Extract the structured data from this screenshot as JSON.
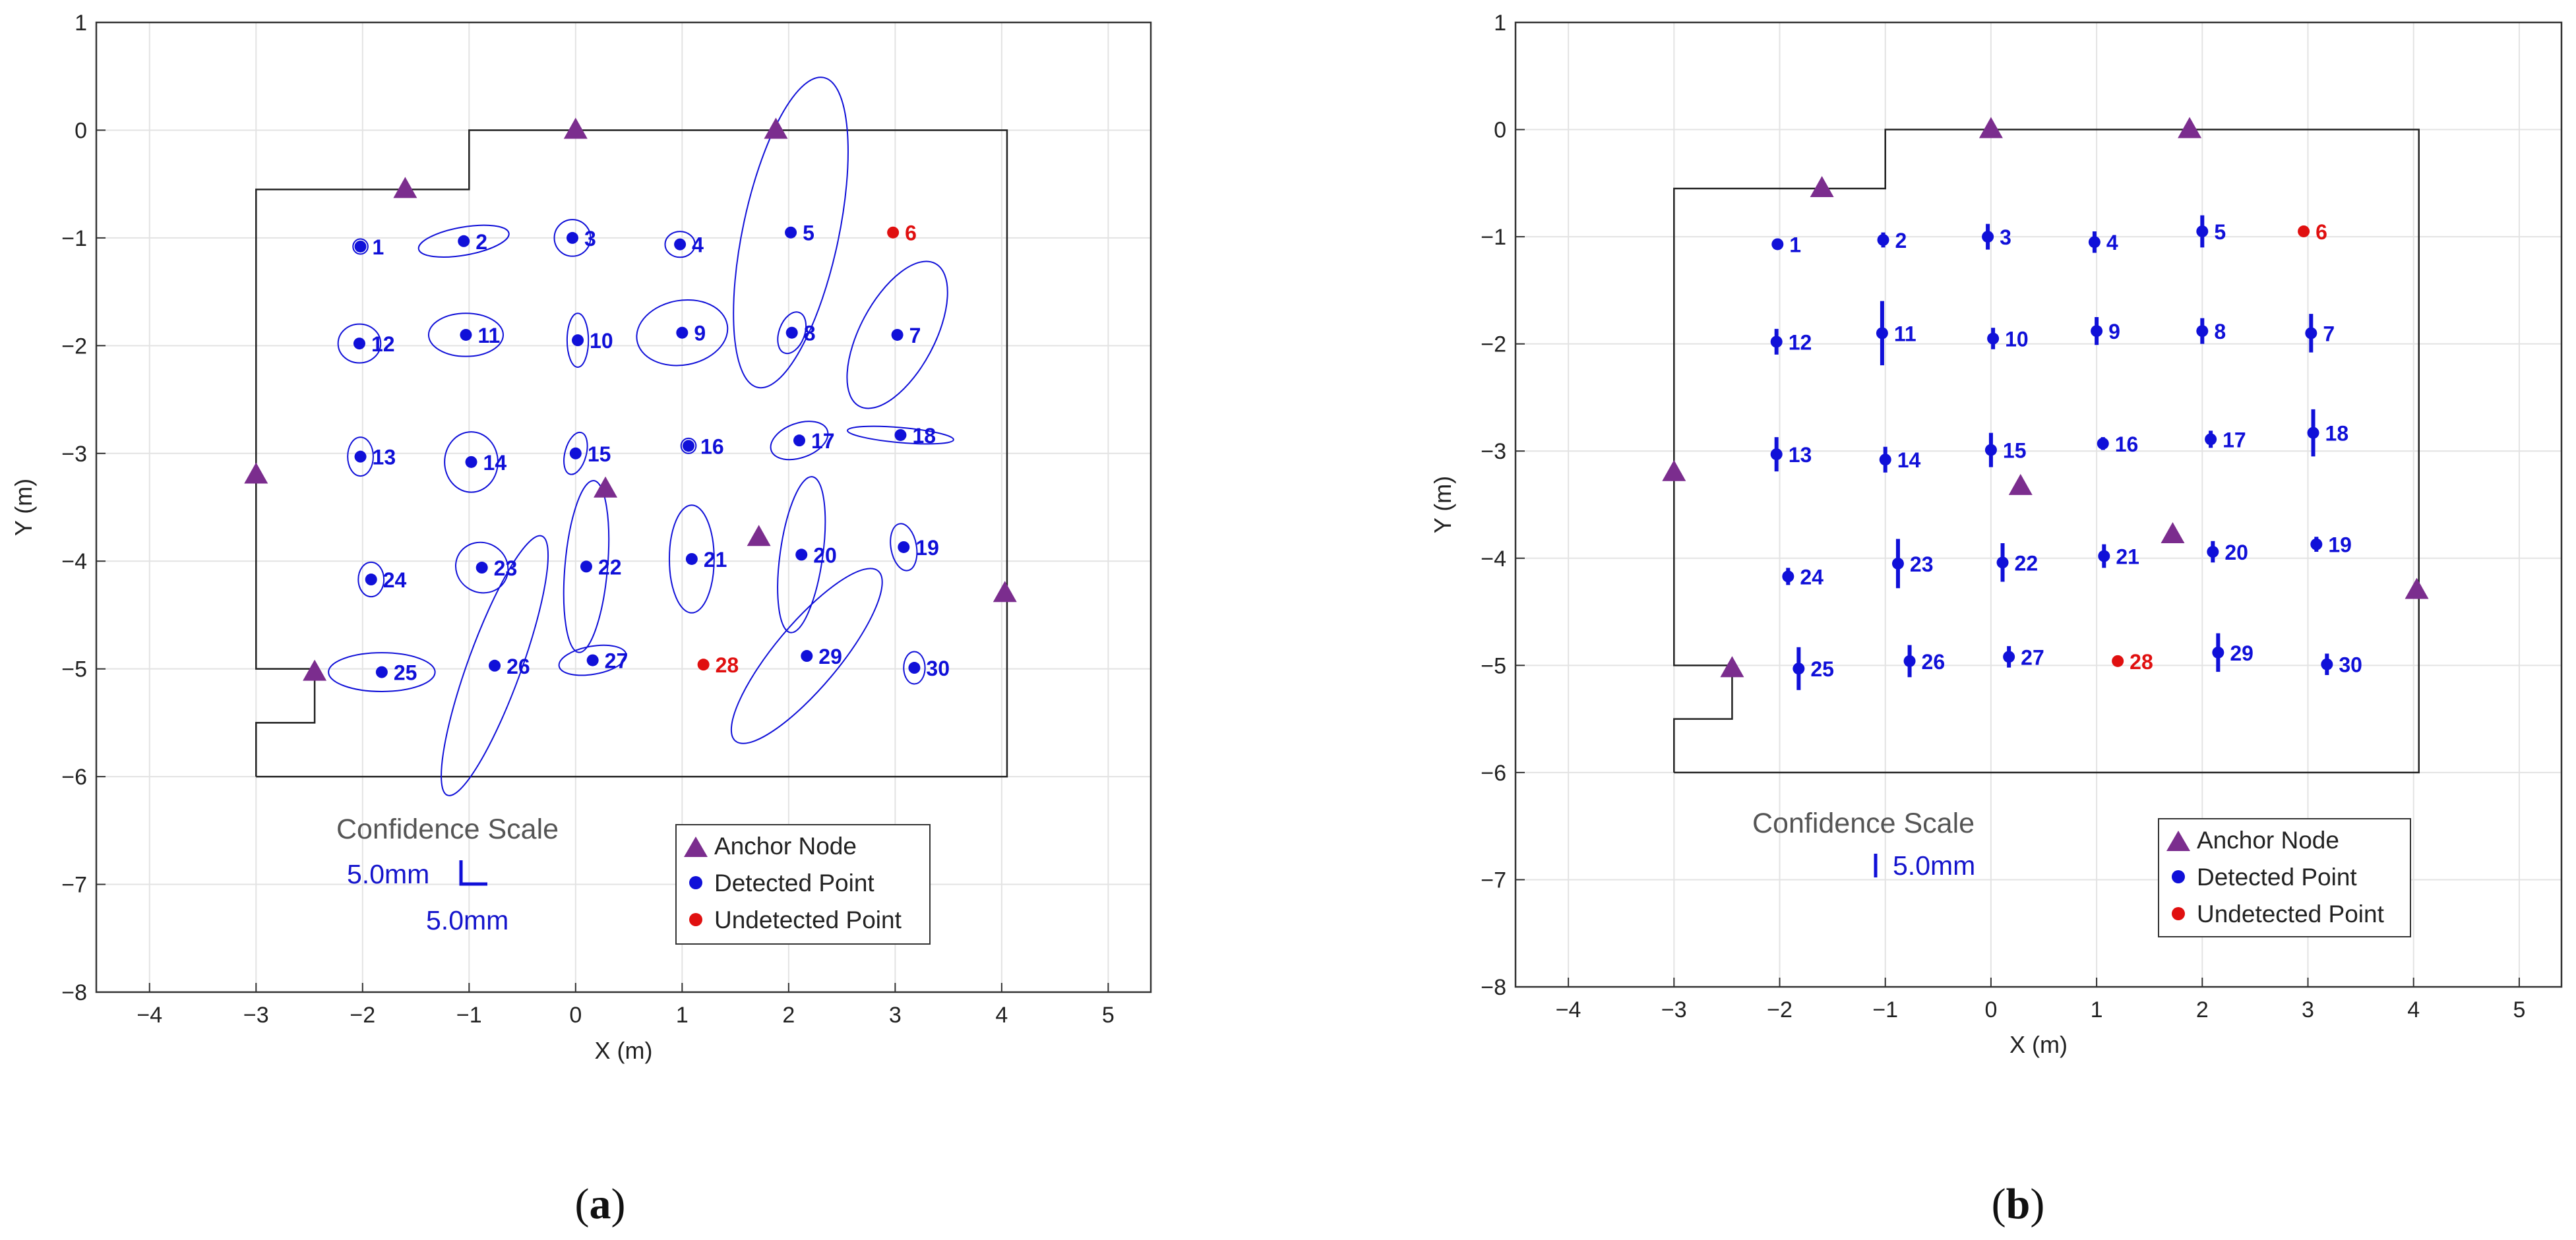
{
  "colors": {
    "anchor": "#7b2d8e",
    "detected": "#1010d8",
    "undetected": "#e01010",
    "room": "#222222",
    "grid": "#e3e3e3"
  },
  "panels": [
    {
      "label": "a",
      "mode": "ellipse",
      "scale_title": "Confidence Scale",
      "scale_text_1": "5.0mm",
      "scale_text_2": "5.0mm",
      "legend": [
        "Anchor Node",
        "Detected Point",
        "Undetected Point"
      ]
    },
    {
      "label": "b",
      "mode": "bar",
      "scale_title": "Confidence Scale",
      "scale_text_1": "5.0mm",
      "legend": [
        "Anchor Node",
        "Detected Point",
        "Undetected Point"
      ]
    }
  ],
  "chart_data": [
    {
      "type": "scatter",
      "panel": "a",
      "title": "",
      "xlabel": "X (m)",
      "ylabel": "Y (m)",
      "xlim": [
        -4.5,
        5.4
      ],
      "ylim": [
        -8,
        1
      ],
      "xticks": [
        -4,
        -3,
        -2,
        -1,
        0,
        1,
        2,
        3,
        4,
        5
      ],
      "yticks": [
        1,
        0,
        -1,
        -2,
        -3,
        -4,
        -5,
        -6,
        -7,
        -8
      ],
      "grid": true,
      "legend_position": "bottom-right",
      "room_outline": [
        [
          -3,
          -6
        ],
        [
          -3,
          -5.5
        ],
        [
          -2.45,
          -5.5
        ],
        [
          -2.45,
          -5
        ],
        [
          -3,
          -5
        ],
        [
          -3,
          -0.55
        ],
        [
          -1,
          -0.55
        ],
        [
          -1,
          0
        ],
        [
          4.05,
          0
        ],
        [
          4.05,
          -6
        ],
        [
          -3,
          -6
        ]
      ],
      "anchors": [
        [
          -1.6,
          -0.55
        ],
        [
          0,
          0
        ],
        [
          1.88,
          0
        ],
        [
          -3,
          -3.2
        ],
        [
          0.28,
          -3.33
        ],
        [
          1.72,
          -3.78
        ],
        [
          4.03,
          -4.3
        ],
        [
          -2.45,
          -5.03
        ]
      ],
      "points": [
        {
          "id": "1",
          "x": -2.02,
          "y": -1.08,
          "detected": true,
          "ellipse": {
            "rx": 0.07,
            "ry": 0.07,
            "angle": 0
          }
        },
        {
          "id": "2",
          "x": -1.05,
          "y": -1.03,
          "detected": true,
          "ellipse": {
            "rx": 0.43,
            "ry": 0.13,
            "angle": -10
          }
        },
        {
          "id": "3",
          "x": -0.03,
          "y": -1.0,
          "detected": true,
          "ellipse": {
            "rx": 0.17,
            "ry": 0.17,
            "angle": 0
          }
        },
        {
          "id": "4",
          "x": 0.98,
          "y": -1.06,
          "detected": true,
          "ellipse": {
            "rx": 0.14,
            "ry": 0.12,
            "angle": 0
          }
        },
        {
          "id": "5",
          "x": 2.02,
          "y": -0.95,
          "detected": true,
          "ellipse": {
            "rx": 0.45,
            "ry": 1.47,
            "angle": 12
          }
        },
        {
          "id": "6",
          "x": 2.98,
          "y": -0.95,
          "detected": false
        },
        {
          "id": "7",
          "x": 3.02,
          "y": -1.9,
          "detected": true,
          "ellipse": {
            "rx": 0.35,
            "ry": 0.75,
            "angle": 28
          }
        },
        {
          "id": "8",
          "x": 2.03,
          "y": -1.88,
          "detected": true,
          "ellipse": {
            "rx": 0.12,
            "ry": 0.2,
            "angle": 20
          }
        },
        {
          "id": "9",
          "x": 1.0,
          "y": -1.88,
          "detected": true,
          "ellipse": {
            "rx": 0.43,
            "ry": 0.3,
            "angle": -10
          }
        },
        {
          "id": "10",
          "x": 0.02,
          "y": -1.95,
          "detected": true,
          "ellipse": {
            "rx": 0.1,
            "ry": 0.25,
            "angle": 0
          }
        },
        {
          "id": "11",
          "x": -1.03,
          "y": -1.9,
          "detected": true,
          "ellipse": {
            "rx": 0.35,
            "ry": 0.2,
            "angle": 0
          }
        },
        {
          "id": "12",
          "x": -2.03,
          "y": -1.98,
          "detected": true,
          "ellipse": {
            "rx": 0.2,
            "ry": 0.18,
            "angle": 0
          }
        },
        {
          "id": "13",
          "x": -2.02,
          "y": -3.03,
          "detected": true,
          "ellipse": {
            "rx": 0.12,
            "ry": 0.18,
            "angle": 0
          }
        },
        {
          "id": "14",
          "x": -0.98,
          "y": -3.08,
          "detected": true,
          "ellipse": {
            "rx": 0.25,
            "ry": 0.28,
            "angle": 0
          }
        },
        {
          "id": "15",
          "x": 0.0,
          "y": -3.0,
          "detected": true,
          "ellipse": {
            "rx": 0.1,
            "ry": 0.2,
            "angle": 15
          }
        },
        {
          "id": "16",
          "x": 1.06,
          "y": -2.93,
          "detected": true,
          "ellipse": {
            "rx": 0.07,
            "ry": 0.07,
            "angle": 0
          }
        },
        {
          "id": "17",
          "x": 2.1,
          "y": -2.88,
          "detected": true,
          "ellipse": {
            "rx": 0.28,
            "ry": 0.16,
            "angle": -20
          }
        },
        {
          "id": "18",
          "x": 3.05,
          "y": -2.83,
          "detected": true,
          "ellipse": {
            "rx": 0.5,
            "ry": 0.07,
            "angle": 5
          }
        },
        {
          "id": "19",
          "x": 3.08,
          "y": -3.87,
          "detected": true,
          "ellipse": {
            "rx": 0.12,
            "ry": 0.22,
            "angle": -10
          }
        },
        {
          "id": "20",
          "x": 2.12,
          "y": -3.94,
          "detected": true,
          "ellipse": {
            "rx": 0.2,
            "ry": 0.73,
            "angle": 8
          }
        },
        {
          "id": "21",
          "x": 1.09,
          "y": -3.98,
          "detected": true,
          "ellipse": {
            "rx": 0.21,
            "ry": 0.5,
            "angle": 0
          }
        },
        {
          "id": "22",
          "x": 0.1,
          "y": -4.05,
          "detected": true,
          "ellipse": {
            "rx": 0.2,
            "ry": 0.8,
            "angle": 5
          }
        },
        {
          "id": "23",
          "x": -0.88,
          "y": -4.06,
          "detected": true,
          "ellipse": {
            "rx": 0.25,
            "ry": 0.23,
            "angle": 30
          }
        },
        {
          "id": "24",
          "x": -1.92,
          "y": -4.17,
          "detected": true,
          "ellipse": {
            "rx": 0.12,
            "ry": 0.16,
            "angle": 0
          }
        },
        {
          "id": "25",
          "x": -1.82,
          "y": -5.03,
          "detected": true,
          "ellipse": {
            "rx": 0.5,
            "ry": 0.18,
            "angle": 0
          }
        },
        {
          "id": "26",
          "x": -0.76,
          "y": -4.97,
          "detected": true,
          "ellipse": {
            "rx": 0.25,
            "ry": 1.28,
            "angle": 20
          }
        },
        {
          "id": "27",
          "x": 0.16,
          "y": -4.92,
          "detected": true,
          "ellipse": {
            "rx": 0.32,
            "ry": 0.13,
            "angle": -10
          }
        },
        {
          "id": "28",
          "x": 1.2,
          "y": -4.96,
          "detected": false
        },
        {
          "id": "29",
          "x": 2.17,
          "y": -4.88,
          "detected": true,
          "ellipse": {
            "rx": 0.3,
            "ry": 1.03,
            "angle": 40
          }
        },
        {
          "id": "30",
          "x": 3.18,
          "y": -4.99,
          "detected": true,
          "ellipse": {
            "rx": 0.1,
            "ry": 0.15,
            "angle": 0
          }
        }
      ]
    },
    {
      "type": "scatter",
      "panel": "b",
      "title": "",
      "xlabel": "X (m)",
      "ylabel": "Y (m)",
      "xlim": [
        -4.5,
        5.4
      ],
      "ylim": [
        -8,
        1
      ],
      "xticks": [
        -4,
        -3,
        -2,
        -1,
        0,
        1,
        2,
        3,
        4,
        5
      ],
      "yticks": [
        1,
        0,
        -1,
        -2,
        -3,
        -4,
        -5,
        -6,
        -7,
        -8
      ],
      "grid": true,
      "legend_position": "bottom-right",
      "room_outline": [
        [
          -3,
          -6
        ],
        [
          -3,
          -5.5
        ],
        [
          -2.45,
          -5.5
        ],
        [
          -2.45,
          -5
        ],
        [
          -3,
          -5
        ],
        [
          -3,
          -0.55
        ],
        [
          -1,
          -0.55
        ],
        [
          -1,
          0
        ],
        [
          4.05,
          0
        ],
        [
          4.05,
          -6
        ],
        [
          -3,
          -6
        ]
      ],
      "anchors": [
        [
          -1.6,
          -0.55
        ],
        [
          0,
          0
        ],
        [
          1.88,
          0
        ],
        [
          -3,
          -3.2
        ],
        [
          0.28,
          -3.33
        ],
        [
          1.72,
          -3.78
        ],
        [
          4.03,
          -4.3
        ],
        [
          -2.45,
          -5.03
        ]
      ],
      "points": [
        {
          "id": "1",
          "x": -2.02,
          "y": -1.07,
          "detected": true,
          "bar": 0.05
        },
        {
          "id": "2",
          "x": -1.02,
          "y": -1.03,
          "detected": true,
          "bar": 0.07
        },
        {
          "id": "3",
          "x": -0.03,
          "y": -1.0,
          "detected": true,
          "bar": 0.12
        },
        {
          "id": "4",
          "x": 0.98,
          "y": -1.05,
          "detected": true,
          "bar": 0.1
        },
        {
          "id": "5",
          "x": 2.0,
          "y": -0.95,
          "detected": true,
          "bar": 0.15
        },
        {
          "id": "6",
          "x": 2.96,
          "y": -0.95,
          "detected": false
        },
        {
          "id": "7",
          "x": 3.03,
          "y": -1.9,
          "detected": true,
          "bar": 0.18
        },
        {
          "id": "8",
          "x": 2.0,
          "y": -1.88,
          "detected": true,
          "bar": 0.12
        },
        {
          "id": "9",
          "x": 1.0,
          "y": -1.88,
          "detected": true,
          "bar": 0.13
        },
        {
          "id": "10",
          "x": 0.02,
          "y": -1.95,
          "detected": true,
          "bar": 0.1
        },
        {
          "id": "11",
          "x": -1.03,
          "y": -1.9,
          "detected": true,
          "bar": 0.3
        },
        {
          "id": "12",
          "x": -2.03,
          "y": -1.98,
          "detected": true,
          "bar": 0.12
        },
        {
          "id": "13",
          "x": -2.03,
          "y": -3.03,
          "detected": true,
          "bar": 0.16
        },
        {
          "id": "14",
          "x": -1.0,
          "y": -3.08,
          "detected": true,
          "bar": 0.12
        },
        {
          "id": "15",
          "x": 0.0,
          "y": -2.99,
          "detected": true,
          "bar": 0.16
        },
        {
          "id": "16",
          "x": 1.06,
          "y": -2.93,
          "detected": true,
          "bar": 0.06
        },
        {
          "id": "17",
          "x": 2.08,
          "y": -2.89,
          "detected": true,
          "bar": 0.08
        },
        {
          "id": "18",
          "x": 3.05,
          "y": -2.83,
          "detected": true,
          "bar": 0.22
        },
        {
          "id": "19",
          "x": 3.08,
          "y": -3.87,
          "detected": true,
          "bar": 0.07
        },
        {
          "id": "20",
          "x": 2.1,
          "y": -3.94,
          "detected": true,
          "bar": 0.1
        },
        {
          "id": "21",
          "x": 1.07,
          "y": -3.98,
          "detected": true,
          "bar": 0.11
        },
        {
          "id": "22",
          "x": 0.11,
          "y": -4.04,
          "detected": true,
          "bar": 0.18
        },
        {
          "id": "23",
          "x": -0.88,
          "y": -4.05,
          "detected": true,
          "bar": 0.23
        },
        {
          "id": "24",
          "x": -1.92,
          "y": -4.17,
          "detected": true,
          "bar": 0.08
        },
        {
          "id": "25",
          "x": -1.82,
          "y": -5.03,
          "detected": true,
          "bar": 0.2
        },
        {
          "id": "26",
          "x": -0.77,
          "y": -4.96,
          "detected": true,
          "bar": 0.15
        },
        {
          "id": "27",
          "x": 0.17,
          "y": -4.92,
          "detected": true,
          "bar": 0.1
        },
        {
          "id": "28",
          "x": 1.2,
          "y": -4.96,
          "detected": false
        },
        {
          "id": "29",
          "x": 2.15,
          "y": -4.88,
          "detected": true,
          "bar": 0.18
        },
        {
          "id": "30",
          "x": 3.18,
          "y": -4.99,
          "detected": true,
          "bar": 0.1
        }
      ]
    }
  ]
}
